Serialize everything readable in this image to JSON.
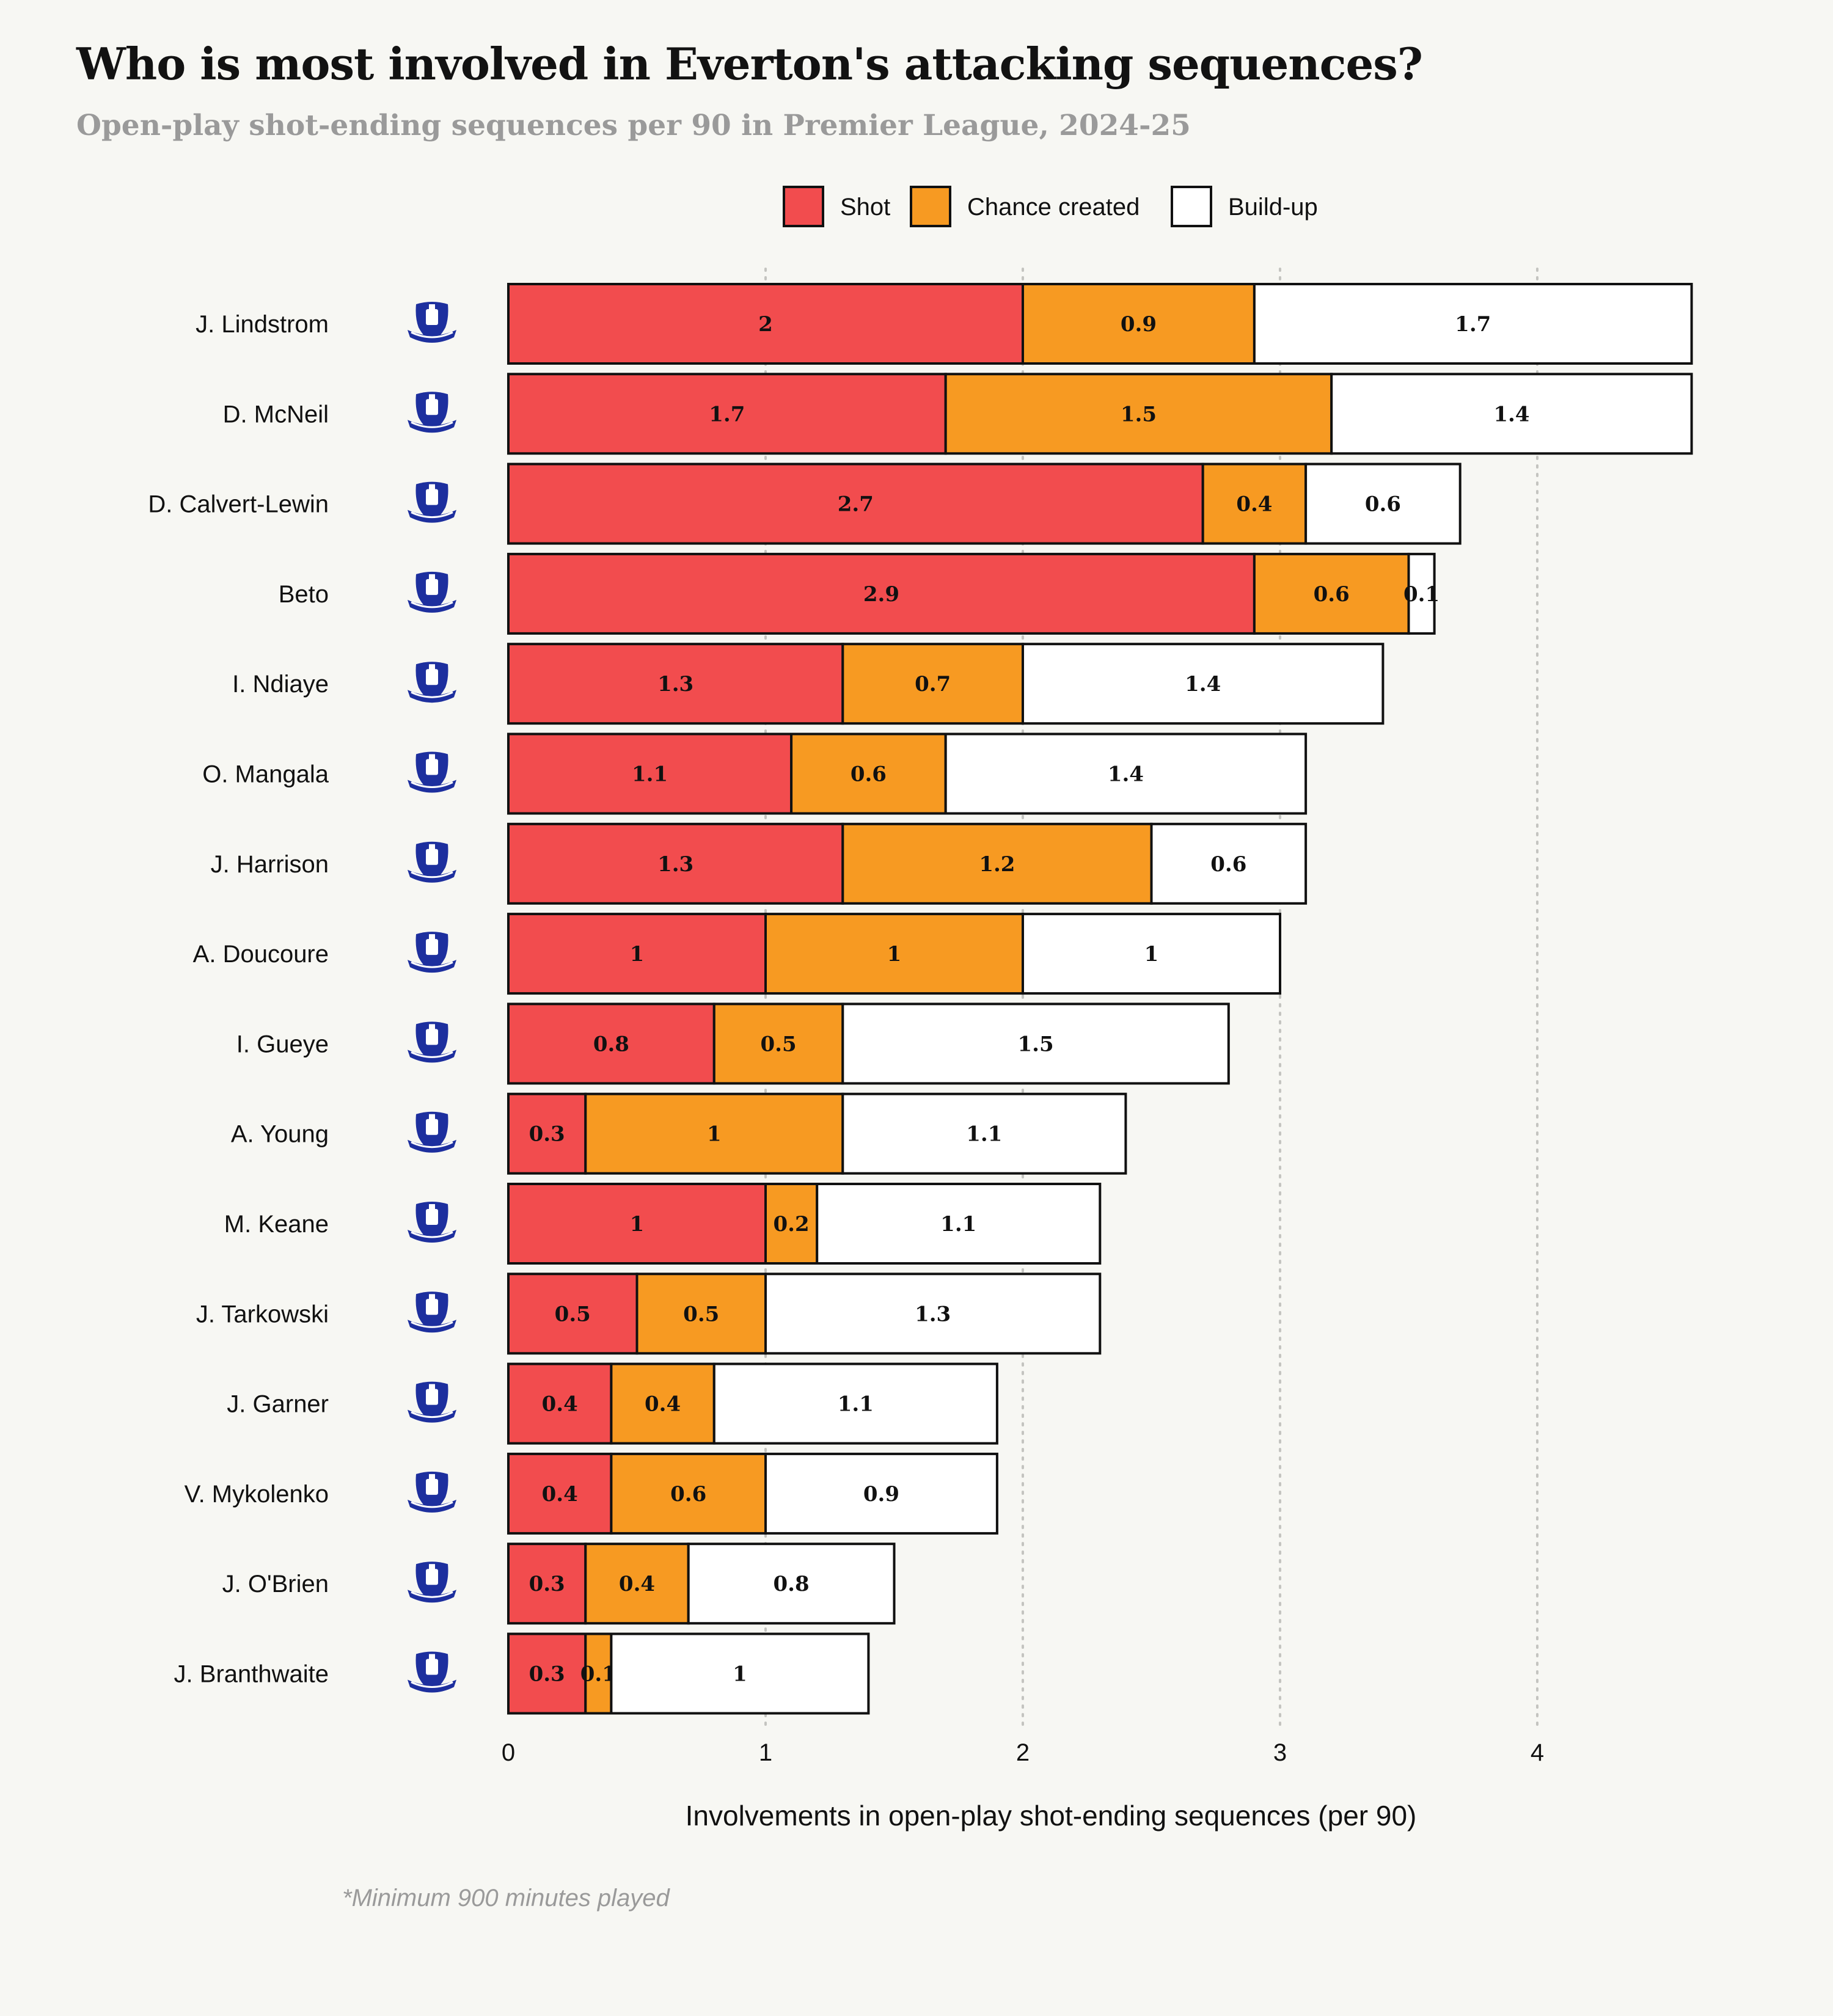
{
  "colors": {
    "shot": "#f24c4e",
    "chance": "#f79a22",
    "buildup": "#ffffff",
    "crest": "#1d2f9e",
    "background": "#f7f7f3"
  },
  "crest_icon": "everton-crest-icon",
  "footnote": "*Minimum 900 minutes played",
  "chart_data": {
    "type": "bar",
    "orientation": "horizontal",
    "stacked": true,
    "title": "Who is most involved in Everton's attacking sequences?",
    "subtitle": "Open-play shot-ending sequences per 90 in Premier League, 2024-25",
    "xlabel": "Involvements in open-play shot-ending sequences (per 90)",
    "xlim": [
      0,
      4.6
    ],
    "xticks": [
      0,
      1,
      2,
      3,
      4
    ],
    "grid": "vertical dotted",
    "legend_position": "top",
    "categories": [
      "J. Lindstrom",
      "D. McNeil",
      "D. Calvert-Lewin",
      "Beto",
      "I. Ndiaye",
      "O. Mangala",
      "J. Harrison",
      "A. Doucoure",
      "I. Gueye",
      "A. Young",
      "M. Keane",
      "J. Tarkowski",
      "J. Garner",
      "V. Mykolenko",
      "J. O'Brien",
      "J. Branthwaite"
    ],
    "series": [
      {
        "name": "Shot",
        "values": [
          2,
          1.7,
          2.7,
          2.9,
          1.3,
          1.1,
          1.3,
          1,
          0.8,
          0.3,
          1,
          0.5,
          0.4,
          0.4,
          0.3,
          0.3
        ]
      },
      {
        "name": "Chance created",
        "values": [
          0.9,
          1.5,
          0.4,
          0.6,
          0.7,
          0.6,
          1.2,
          1,
          0.5,
          1,
          0.2,
          0.5,
          0.4,
          0.6,
          0.4,
          0.1
        ]
      },
      {
        "name": "Build-up",
        "values": [
          1.7,
          1.4,
          0.6,
          0.1,
          1.4,
          1.4,
          0.6,
          1,
          1.5,
          1.1,
          1.1,
          1.3,
          1.1,
          0.9,
          0.8,
          1
        ]
      }
    ]
  }
}
